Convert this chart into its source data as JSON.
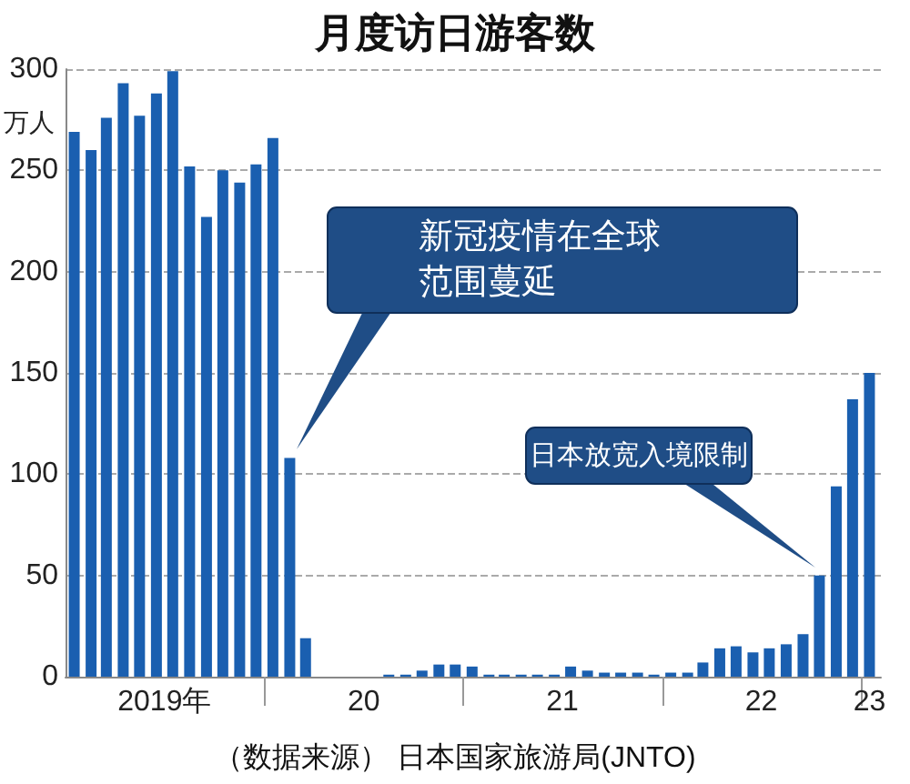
{
  "chart_data": {
    "type": "bar",
    "title": "月度访日游客数",
    "ylabel": "万人",
    "x": [
      "2019-01",
      "2019-02",
      "2019-03",
      "2019-04",
      "2019-05",
      "2019-06",
      "2019-07",
      "2019-08",
      "2019-09",
      "2019-10",
      "2019-11",
      "2019-12",
      "2020-01",
      "2020-02",
      "2020-03",
      "2020-04",
      "2020-05",
      "2020-06",
      "2020-07",
      "2020-08",
      "2020-09",
      "2020-10",
      "2020-11",
      "2020-12",
      "2021-01",
      "2021-02",
      "2021-03",
      "2021-04",
      "2021-05",
      "2021-06",
      "2021-07",
      "2021-08",
      "2021-09",
      "2021-10",
      "2021-11",
      "2021-12",
      "2022-01",
      "2022-02",
      "2022-03",
      "2022-04",
      "2022-05",
      "2022-06",
      "2022-07",
      "2022-08",
      "2022-09",
      "2022-10",
      "2022-11",
      "2022-12",
      "2023-01"
    ],
    "values": [
      269,
      260,
      276,
      293,
      277,
      288,
      299,
      252,
      227,
      250,
      244,
      253,
      266,
      108,
      19,
      0,
      0,
      0,
      0,
      1,
      1,
      3,
      6,
      6,
      5,
      1,
      1,
      1,
      1,
      1,
      5,
      3,
      2,
      2,
      2,
      1,
      2,
      2,
      7,
      14,
      15,
      12,
      14,
      16,
      21,
      50,
      94,
      137,
      150
    ],
    "color": "#1a5fb0",
    "xlim": [
      "2018-12-16",
      "2023-01-22"
    ],
    "xticks": [
      {
        "value": "2019-06-16",
        "label": "2019年"
      },
      {
        "value": "2019-12-16",
        "label": null
      },
      {
        "value": "2020-06-16",
        "label": "20"
      },
      {
        "value": "2020-12-16",
        "label": null
      },
      {
        "value": "2021-06-16",
        "label": "21"
      },
      {
        "value": "2021-12-16",
        "label": null
      },
      {
        "value": "2022-06-16",
        "label": "22"
      },
      {
        "value": "2022-12-16",
        "label": null
      },
      {
        "value": "2023-01-01",
        "label": "23"
      }
    ],
    "ylim": [
      0,
      300
    ],
    "yticks": [
      0,
      50,
      100,
      150,
      200,
      250,
      300
    ],
    "grid": "y",
    "annotations": [
      "新冠疫情在全球范围蔓延",
      "日本放宽入境限制",
      "（数据来源） 日本国家旅游局(JNTO)"
    ]
  }
}
